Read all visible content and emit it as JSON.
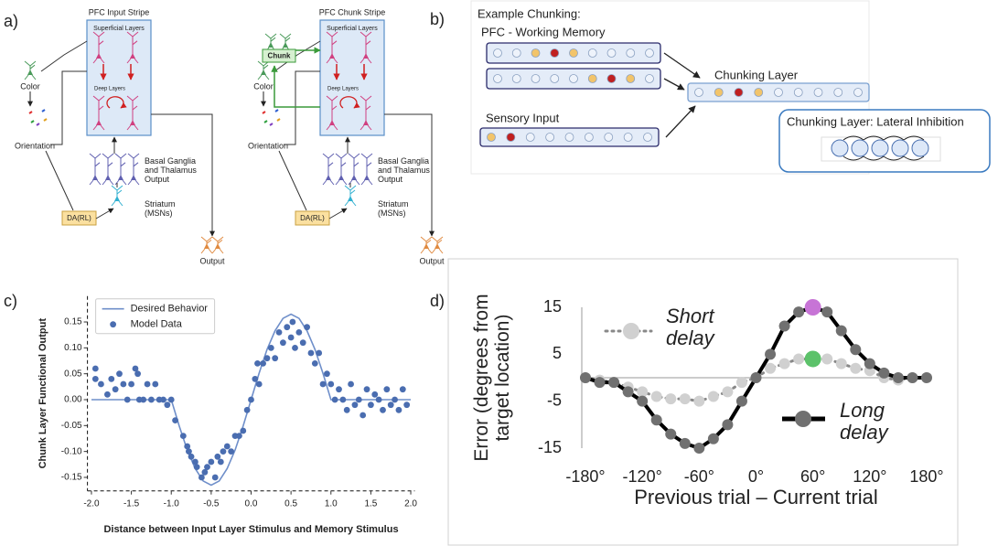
{
  "panel_labels": [
    "a)",
    "b)",
    "c)",
    "d)"
  ],
  "diagram_a": {
    "stripes": [
      {
        "title": "PFC Input Stripe",
        "superficial": "Superficial Layers",
        "deep": "Deep Layers",
        "color": "Color",
        "orientation": "Orientation",
        "bg": "Basal Ganglia and Thalamus Output",
        "striatum": "Striatum (MSNs)",
        "da": "DA(RL)",
        "output": "Output"
      },
      {
        "title": "PFC Chunk Stripe",
        "chunk": "Chunk",
        "superficial": "Superficial Layers",
        "deep": "Deep Layers",
        "color": "Color",
        "orientation": "Orientation",
        "bg": "Basal Ganglia and Thalamus Output",
        "striatum": "Striatum (MSNs)",
        "da": "DA(RL)",
        "output": "Output"
      }
    ]
  },
  "diagram_b": {
    "title": "Example Chunking:",
    "working_memory": "PFC - Working Memory",
    "chunking_layer": "Chunking Layer",
    "sensory_input": "Sensory Input",
    "inhibition": "Chunking Layer: Lateral Inhibition"
  },
  "chart_data": [
    {
      "type": "scatter",
      "xlabel": "Distance between Input Layer Stimulus and Memory Stimulus",
      "ylabel": "Chunk Layer Functional Output",
      "xlim": [
        -2.05,
        2.05
      ],
      "ylim": [
        -0.176,
        0.2
      ],
      "xticks": [
        {
          "value": -2,
          "label": "-2.0"
        },
        -1.5,
        {
          "value": -1,
          "label": "-1.0"
        },
        -0.5,
        {
          "value": 0,
          "label": "0.0"
        },
        0.5,
        {
          "value": 1,
          "label": "1.0"
        },
        1.5,
        {
          "value": 2,
          "label": "2.0"
        }
      ],
      "yticks": [
        -0.15,
        {
          "value": -0.1,
          "label": "-0.10"
        },
        -0.05,
        {
          "value": 0,
          "label": "0.00"
        },
        0.05,
        {
          "value": 0.1,
          "label": "0.10"
        },
        0.15
      ],
      "legend": "upper left",
      "series": [
        {
          "name": "Desired Behavior",
          "type": "line",
          "color": "#6f8fca",
          "x": [
            -2,
            -1,
            -0.9,
            -0.8,
            -0.7,
            -0.6,
            -0.5,
            -0.4,
            -0.3,
            -0.2,
            -0.1,
            0,
            0.1,
            0.2,
            0.3,
            0.4,
            0.5,
            0.6,
            0.7,
            0.8,
            0.9,
            1,
            2
          ],
          "values": [
            0,
            0,
            -0.051,
            -0.097,
            -0.133,
            -0.157,
            -0.165,
            -0.157,
            -0.133,
            -0.097,
            -0.051,
            0,
            0.051,
            0.097,
            0.133,
            0.157,
            0.165,
            0.157,
            0.133,
            0.097,
            0.051,
            0,
            0
          ]
        },
        {
          "name": "Model Data",
          "type": "scatter",
          "color": "#4a6db0",
          "x": [
            -1.95,
            -1.95,
            -1.88,
            -1.8,
            -1.75,
            -1.7,
            -1.65,
            -1.6,
            -1.55,
            -1.5,
            -1.45,
            -1.42,
            -1.4,
            -1.35,
            -1.3,
            -1.25,
            -1.2,
            -1.15,
            -1.1,
            -1.05,
            -1.0,
            -0.95,
            -0.85,
            -0.8,
            -0.78,
            -0.75,
            -0.7,
            -0.68,
            -0.62,
            -0.58,
            -0.55,
            -0.5,
            -0.45,
            -0.42,
            -0.38,
            -0.35,
            -0.3,
            -0.25,
            -0.2,
            -0.15,
            -0.1,
            -0.05,
            0.0,
            0.05,
            0.08,
            0.1,
            0.15,
            0.2,
            0.25,
            0.3,
            0.35,
            0.4,
            0.45,
            0.5,
            0.52,
            0.55,
            0.6,
            0.65,
            0.7,
            0.75,
            0.8,
            0.85,
            0.9,
            0.95,
            1.0,
            1.05,
            1.1,
            1.15,
            1.2,
            1.25,
            1.3,
            1.35,
            1.4,
            1.45,
            1.5,
            1.55,
            1.6,
            1.65,
            1.7,
            1.75,
            1.8,
            1.85,
            1.9,
            1.95
          ],
          "values": [
            0.06,
            0.04,
            0.03,
            0.01,
            0.04,
            0.02,
            0.05,
            0.03,
            0.0,
            0.03,
            0.06,
            0.05,
            0.0,
            0.0,
            0.03,
            0.0,
            0.03,
            0.0,
            0.0,
            -0.01,
            0.0,
            -0.04,
            -0.07,
            -0.09,
            -0.1,
            -0.11,
            -0.12,
            -0.13,
            -0.15,
            -0.14,
            -0.13,
            -0.12,
            -0.15,
            -0.11,
            -0.12,
            -0.1,
            -0.09,
            -0.1,
            -0.07,
            -0.07,
            -0.06,
            -0.02,
            0.0,
            0.04,
            0.07,
            0.03,
            0.07,
            0.08,
            0.1,
            0.08,
            0.13,
            0.11,
            0.14,
            0.12,
            0.15,
            0.1,
            0.13,
            0.11,
            0.14,
            0.09,
            0.07,
            0.09,
            0.03,
            0.05,
            0.03,
            0.0,
            0.02,
            0.0,
            -0.02,
            0.03,
            -0.01,
            0.0,
            -0.03,
            0.02,
            -0.01,
            0.01,
            0.0,
            -0.02,
            0.02,
            -0.01,
            0.0,
            -0.02,
            0.02,
            -0.01
          ]
        }
      ]
    },
    {
      "type": "line",
      "xlabel": "Previous trial – Current trial",
      "ylabel": "Error (degrees from target location)",
      "xlim": [
        -180,
        180
      ],
      "ylim": [
        -15,
        15
      ],
      "xticks": [
        {
          "value": -180,
          "label": "-180°"
        },
        {
          "value": -120,
          "label": "-120°"
        },
        {
          "value": -60,
          "label": "-60°"
        },
        {
          "value": 0,
          "label": "0°"
        },
        {
          "value": 60,
          "label": "60°"
        },
        {
          "value": 120,
          "label": "120°"
        },
        {
          "value": 180,
          "label": "180°"
        }
      ],
      "yticks": [
        15,
        5,
        -5,
        -15
      ],
      "zero_line": true,
      "series": [
        {
          "name": "Short delay",
          "color": "#d0d0d0",
          "line_color": "#888888",
          "dashed": true,
          "highlight": {
            "index": 16,
            "color": "#5cc26a"
          },
          "x": [
            -180,
            -165,
            -150,
            -135,
            -120,
            -105,
            -90,
            -75,
            -60,
            -45,
            -30,
            -15,
            0,
            15,
            30,
            45,
            60,
            75,
            90,
            105,
            120,
            135,
            150,
            165,
            180
          ],
          "values": [
            0,
            -0.5,
            -1,
            -2,
            -3,
            -4,
            -4.5,
            -4.5,
            -5,
            -4,
            -3,
            -1,
            0,
            2,
            3,
            4,
            4,
            4,
            3,
            2,
            1.5,
            0,
            -0.5,
            0,
            0
          ]
        },
        {
          "name": "Long delay",
          "color": "#707070",
          "line_color": "#000000",
          "dashed": false,
          "highlight": {
            "index": 16,
            "color": "#c774d6"
          },
          "x": [
            -180,
            -165,
            -150,
            -135,
            -120,
            -105,
            -90,
            -75,
            -60,
            -45,
            -30,
            -15,
            0,
            15,
            30,
            45,
            60,
            75,
            90,
            105,
            120,
            135,
            150,
            165,
            180
          ],
          "values": [
            0,
            -1,
            -1,
            -3,
            -5,
            -9,
            -12,
            -14,
            -15,
            -13,
            -10,
            -5,
            0,
            5,
            11,
            14,
            15,
            14,
            10,
            6,
            3,
            1,
            0,
            0,
            0
          ]
        }
      ]
    }
  ]
}
